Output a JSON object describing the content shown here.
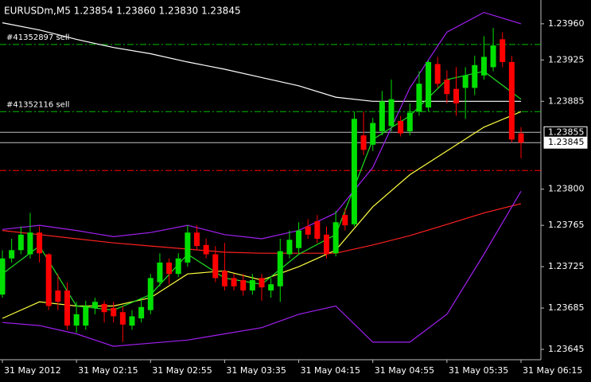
{
  "chart_data": {
    "type": "candlestick",
    "header": "EURUSDm,M5  1.23854 1.23860 1.23830 1.23845",
    "categories": [
      "31 May 2012",
      null,
      null,
      null,
      null,
      null,
      null,
      null,
      "31 May 02:15",
      null,
      null,
      null,
      null,
      null,
      null,
      null,
      "31 May 02:55",
      null,
      null,
      null,
      null,
      null,
      null,
      null,
      "31 May 03:35",
      null,
      null,
      null,
      null,
      null,
      null,
      null,
      "31 May 04:15",
      null,
      null,
      null,
      null,
      null,
      null,
      null,
      "31 May 04:55",
      null,
      null,
      null,
      null,
      null,
      null,
      null,
      "31 May 05:35",
      null,
      null,
      null,
      null,
      null,
      null,
      null,
      "31 May 06:15"
    ],
    "open": [
      1.23698,
      1.23733,
      1.23741,
      1.23737,
      1.23758,
      1.23737,
      1.23702,
      1.23702,
      1.23668,
      1.23668,
      1.23685,
      1.23689,
      1.23685,
      1.23681,
      1.23668,
      1.23675,
      1.23683,
      1.2371,
      1.23729,
      1.23718,
      1.23729,
      1.23758,
      1.23746,
      1.23737,
      1.23721,
      1.23714,
      1.23712,
      1.23702,
      1.23714,
      1.23702,
      1.23706,
      1.23737,
      1.23743,
      1.23764,
      1.23769,
      1.23756,
      1.23738,
      1.23775,
      1.23766,
      1.23852,
      1.23843,
      1.23856,
      1.23861,
      1.23866,
      1.23856,
      1.23875,
      1.23879,
      1.23921,
      1.23906,
      1.23897,
      1.23898,
      1.23898,
      1.2391,
      1.23918,
      1.23945,
      1.23923,
      1.23854
    ],
    "high": [
      1.23741,
      1.23752,
      1.23764,
      1.23777,
      1.23764,
      1.23738,
      1.23718,
      1.2371,
      1.23691,
      1.23692,
      1.23695,
      1.23692,
      1.23691,
      1.23687,
      1.23683,
      1.23695,
      1.23718,
      1.23738,
      1.23733,
      1.23738,
      1.23765,
      1.23765,
      1.23752,
      1.23745,
      1.23748,
      1.23718,
      1.23718,
      1.23718,
      1.23718,
      1.23714,
      1.23752,
      1.2376,
      1.23768,
      1.23771,
      1.23775,
      1.23764,
      1.23779,
      1.23781,
      1.23875,
      1.23875,
      1.23869,
      1.23895,
      1.23906,
      1.23871,
      1.23883,
      1.23914,
      1.23925,
      1.23928,
      1.23915,
      1.23918,
      1.23918,
      1.23929,
      1.23948,
      1.23956,
      1.23952,
      1.23929,
      1.2386
    ],
    "low": [
      1.23695,
      1.23729,
      1.23737,
      1.23733,
      1.23729,
      1.23683,
      1.23683,
      1.23664,
      1.23661,
      1.23664,
      1.23679,
      1.23671,
      1.23671,
      1.23652,
      1.23664,
      1.23671,
      1.23679,
      1.23706,
      1.23708,
      1.23715,
      1.23725,
      1.23741,
      1.23733,
      1.2371,
      1.23702,
      1.23702,
      1.23697,
      1.23698,
      1.23692,
      1.23695,
      1.23691,
      1.23733,
      1.23738,
      1.23752,
      1.23748,
      1.23733,
      1.23735,
      1.2376,
      1.23764,
      1.23833,
      1.23837,
      1.23852,
      1.23856,
      1.23851,
      1.23852,
      1.23871,
      1.23875,
      1.23898,
      1.23883,
      1.23871,
      1.23868,
      1.23891,
      1.23906,
      1.23914,
      1.23918,
      1.23845,
      1.2383
    ],
    "close": [
      1.23733,
      1.23741,
      1.23756,
      1.23758,
      1.23738,
      1.23687,
      1.23691,
      1.23668,
      1.23679,
      1.23687,
      1.23691,
      1.23681,
      1.23677,
      1.23669,
      1.23677,
      1.23686,
      1.23714,
      1.23729,
      1.23718,
      1.23733,
      1.23758,
      1.23745,
      1.23737,
      1.23714,
      1.23706,
      1.23706,
      1.23702,
      1.23712,
      1.23705,
      1.23708,
      1.2374,
      1.23751,
      1.2376,
      1.23756,
      1.23752,
      1.23737,
      1.23768,
      1.23765,
      1.23868,
      1.23838,
      1.23864,
      1.23885,
      1.23887,
      1.23854,
      1.23874,
      1.23902,
      1.23923,
      1.23902,
      1.23892,
      1.23883,
      1.2391,
      1.2392,
      1.23928,
      1.23939,
      1.23923,
      1.23848,
      1.23845
    ],
    "up_color": "#00e000",
    "down_color": "#ff0000",
    "ylim": [
      1.23635,
      1.23983
    ],
    "yticks": [
      {
        "value": 1.2396,
        "label": "1.23960"
      },
      1.23925,
      1.23885,
      {
        "value": 1.238,
        "label": "1.23800"
      },
      1.23765,
      1.23725,
      1.23685,
      1.23645
    ],
    "grid": false,
    "indicator_x": [
      0,
      4,
      8,
      12,
      16,
      20,
      24,
      28,
      32,
      36,
      40,
      44,
      48,
      52,
      56
    ],
    "indicators": [
      {
        "color": "#ffffff",
        "values": [
          1.23961,
          1.23954,
          1.23945,
          1.23937,
          1.23931,
          1.23923,
          1.23916,
          1.23908,
          1.239,
          1.23889,
          1.23885,
          1.23885,
          1.23885,
          1.23885,
          1.23885
        ]
      },
      {
        "color": "#ff2020",
        "values": [
          1.2376,
          1.23756,
          1.23752,
          1.23748,
          1.23745,
          1.23742,
          1.23739,
          1.23738,
          1.23738,
          1.23738,
          1.23746,
          1.23755,
          1.23766,
          1.23777,
          1.23786
        ]
      },
      {
        "color": "#ffff40",
        "values": [
          1.23675,
          1.23691,
          1.23687,
          1.23687,
          1.23695,
          1.23718,
          1.23721,
          1.23712,
          1.23725,
          1.23741,
          1.23783,
          1.23814,
          1.23837,
          1.2386,
          1.23875
        ]
      },
      {
        "color": "#20e020",
        "values": [
          1.23718,
          1.23745,
          1.23687,
          1.23683,
          1.23698,
          1.23737,
          1.23714,
          1.23708,
          1.23737,
          1.23756,
          1.23848,
          1.23871,
          1.23906,
          1.23914,
          1.23887
        ]
      },
      {
        "color": "#a020f0",
        "values": [
          1.23761,
          1.23765,
          1.2376,
          1.23754,
          1.23758,
          1.23765,
          1.23756,
          1.23752,
          1.2376,
          1.23777,
          1.23821,
          1.23898,
          1.23952,
          1.23971,
          1.2396
        ]
      },
      {
        "color": "#a020f0",
        "values": [
          1.23671,
          1.23668,
          1.2366,
          1.23648,
          1.23651,
          1.23654,
          1.2366,
          1.23666,
          1.23679,
          1.23687,
          1.23652,
          1.23652,
          1.23679,
          1.23737,
          1.23798
        ]
      }
    ],
    "levels": [
      {
        "label": "#41352897 sell",
        "value": 1.2394,
        "color": "#00c000"
      },
      {
        "label": "#41352116 sell",
        "value": 1.23875,
        "color": "#00c000"
      },
      {
        "value": 1.23818,
        "color": "#ff0000"
      }
    ],
    "price_lines": [
      1.23855,
      1.23845
    ],
    "price_line_color": "#c0c0c0"
  }
}
